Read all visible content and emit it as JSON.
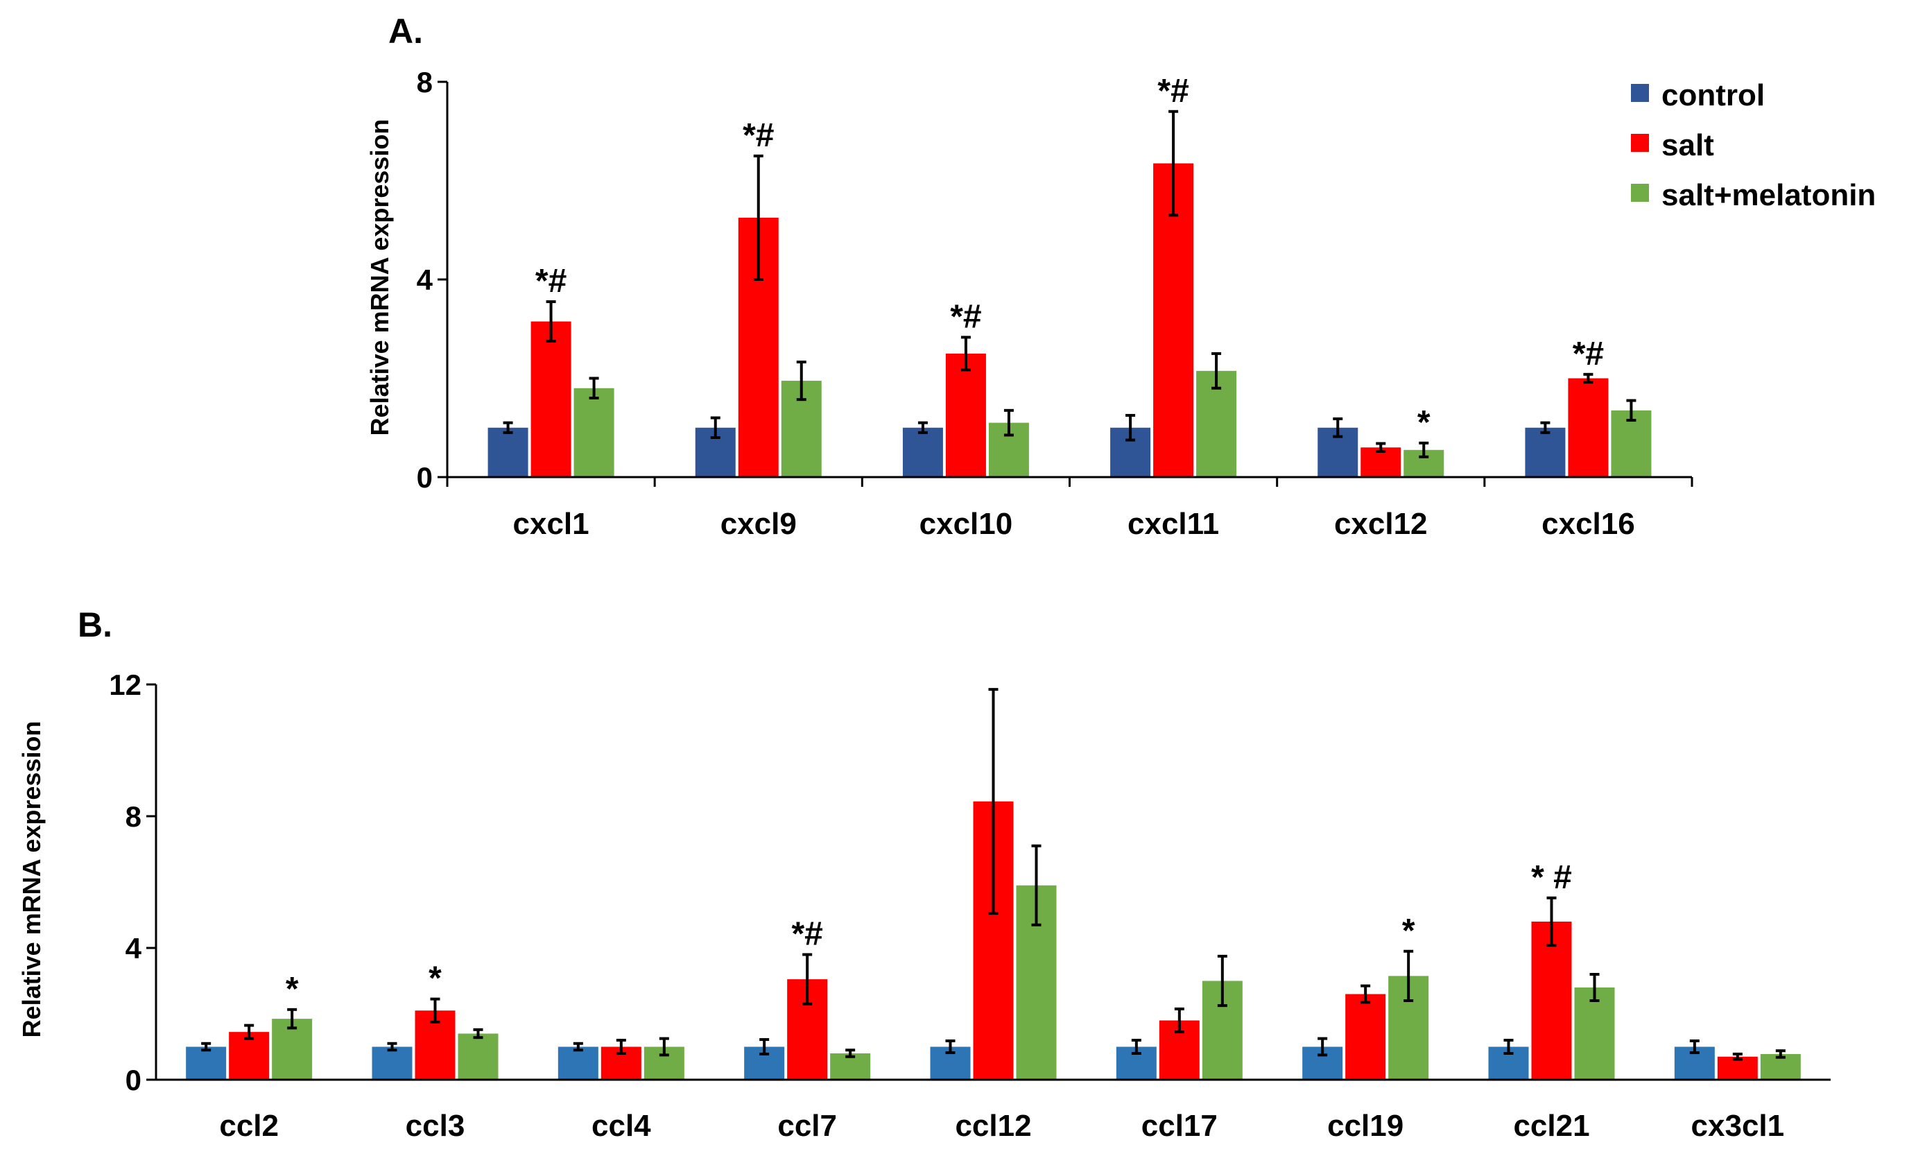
{
  "colors": {
    "control_a": "#2f5597",
    "control_b": "#2e75b6",
    "salt": "#ff0000",
    "salt_melatonin": "#70ad47",
    "axis": "#000000"
  },
  "chart_data": [
    {
      "type": "bar",
      "panel": "A.",
      "ylabel": "Relative mRNA expression",
      "xlabel": "",
      "ylim": [
        0,
        8
      ],
      "yticks": [
        0,
        4,
        8
      ],
      "grid": false,
      "legend_position": "top-right",
      "categories": [
        "cxcl1",
        "cxcl9",
        "cxcl10",
        "cxcl11",
        "cxcl12",
        "cxcl16"
      ],
      "series": [
        {
          "name": "control",
          "values": [
            1.0,
            1.0,
            1.0,
            1.0,
            1.0,
            1.0
          ],
          "errors": [
            0.1,
            0.2,
            0.1,
            0.25,
            0.18,
            0.1
          ]
        },
        {
          "name": "salt",
          "values": [
            3.15,
            5.25,
            2.5,
            6.35,
            0.6,
            2.0
          ],
          "errors": [
            0.4,
            1.25,
            0.33,
            1.05,
            0.08,
            0.08
          ]
        },
        {
          "name": "salt+melatonin",
          "values": [
            1.8,
            1.95,
            1.1,
            2.15,
            0.55,
            1.35
          ],
          "errors": [
            0.2,
            0.38,
            0.25,
            0.35,
            0.14,
            0.2
          ]
        }
      ],
      "annotations": [
        {
          "category": "cxcl1",
          "series": "salt",
          "text": "*#"
        },
        {
          "category": "cxcl9",
          "series": "salt",
          "text": "*#"
        },
        {
          "category": "cxcl10",
          "series": "salt",
          "text": "*#"
        },
        {
          "category": "cxcl11",
          "series": "salt",
          "text": "*#"
        },
        {
          "category": "cxcl12",
          "series": "salt+melatonin",
          "text": "*"
        },
        {
          "category": "cxcl16",
          "series": "salt",
          "text": "*#"
        }
      ]
    },
    {
      "type": "bar",
      "panel": "B.",
      "ylabel": "Relative mRNA expression",
      "xlabel": "",
      "ylim": [
        0,
        12
      ],
      "yticks": [
        0,
        4,
        8,
        12
      ],
      "grid": false,
      "legend_position": "none",
      "categories": [
        "ccl2",
        "ccl3",
        "ccl4",
        "ccl7",
        "ccl12",
        "ccl17",
        "ccl19",
        "ccl21",
        "cx3cl1"
      ],
      "series": [
        {
          "name": "control",
          "values": [
            1.0,
            1.0,
            1.0,
            1.0,
            1.0,
            1.0,
            1.0,
            1.0,
            1.0
          ],
          "errors": [
            0.1,
            0.1,
            0.1,
            0.22,
            0.18,
            0.2,
            0.25,
            0.2,
            0.18
          ]
        },
        {
          "name": "salt",
          "values": [
            1.45,
            2.1,
            1.0,
            3.05,
            8.45,
            1.8,
            2.6,
            4.8,
            0.7
          ],
          "errors": [
            0.2,
            0.35,
            0.2,
            0.75,
            3.4,
            0.35,
            0.25,
            0.72,
            0.08
          ]
        },
        {
          "name": "salt+melatonin",
          "values": [
            1.85,
            1.4,
            1.0,
            0.8,
            5.9,
            3.0,
            3.15,
            2.8,
            0.78
          ],
          "errors": [
            0.28,
            0.12,
            0.25,
            0.1,
            1.2,
            0.75,
            0.75,
            0.4,
            0.1
          ]
        }
      ],
      "annotations": [
        {
          "category": "ccl2",
          "series": "salt+melatonin",
          "text": "*"
        },
        {
          "category": "ccl3",
          "series": "salt",
          "text": "*"
        },
        {
          "category": "ccl7",
          "series": "salt",
          "text": "*#"
        },
        {
          "category": "ccl19",
          "series": "salt+melatonin",
          "text": "*"
        },
        {
          "category": "ccl21",
          "series": "salt",
          "text": "* #"
        }
      ]
    }
  ]
}
